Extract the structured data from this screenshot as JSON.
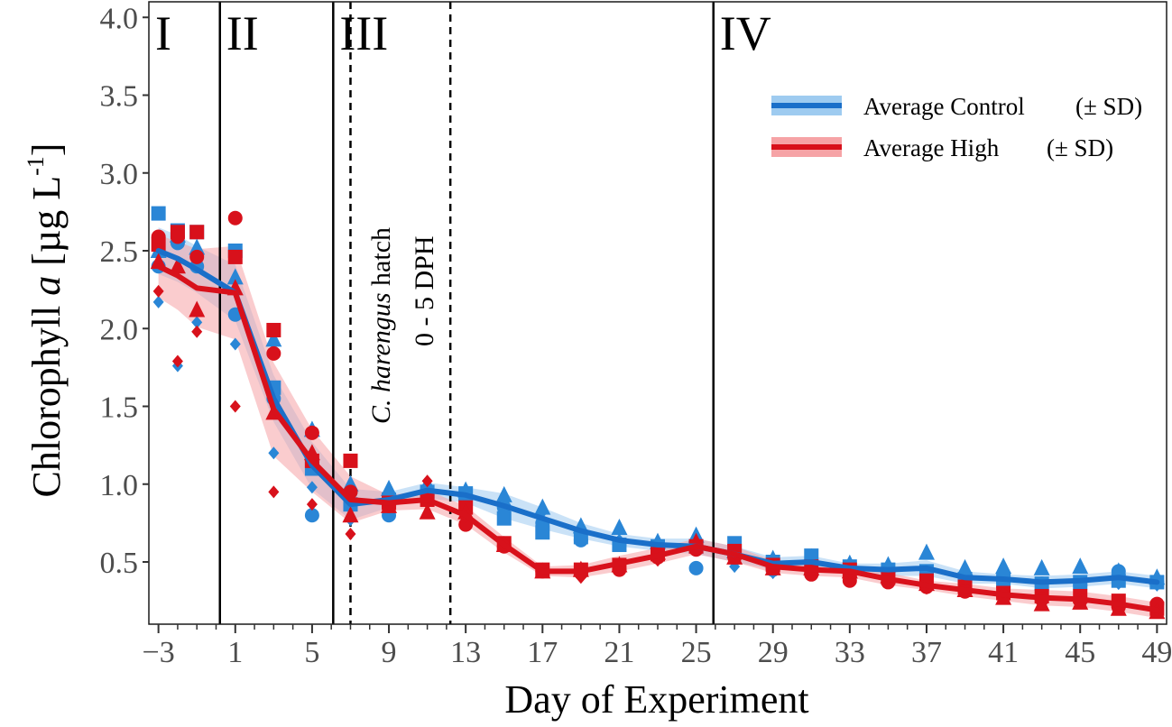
{
  "chart_data": {
    "type": "line",
    "xlabel": "Day of Experiment",
    "ylabel_prefix": "Chlorophyll ",
    "ylabel_italic": "a",
    "ylabel_unit": " [µg L",
    "ylabel_sup": "-1",
    "ylabel_close": "]",
    "xlim": [
      -3.5,
      49.5
    ],
    "ylim": [
      0.1,
      4.1
    ],
    "x_ticks": [
      -3,
      1,
      5,
      9,
      13,
      17,
      21,
      25,
      29,
      33,
      37,
      41,
      45,
      49
    ],
    "x_tick_labels": [
      "−3",
      "1",
      "5",
      "9",
      "13",
      "17",
      "21",
      "25",
      "29",
      "33",
      "37",
      "41",
      "45",
      "49"
    ],
    "y_ticks": [
      0.5,
      1.0,
      1.5,
      2.0,
      2.5,
      3.0,
      3.5,
      4.0
    ],
    "y_tick_labels": [
      "0.5",
      "1.0",
      "1.5",
      "2.0",
      "2.5",
      "3.0",
      "3.5",
      "4.0"
    ],
    "grid": false,
    "legend_position": "top-right",
    "colors": {
      "control": "#1a6fc9",
      "control_band": "#9ecbf0",
      "high": "#d8111b",
      "high_band": "#f6a3a6",
      "point_control": "#2a86d6"
    },
    "phases": [
      {
        "label": "I",
        "x_start": -3.5,
        "x_end": 0.2
      },
      {
        "label": "II",
        "x_start": 0.2,
        "x_end": 6.1
      },
      {
        "label": "III",
        "x_start": 6.1,
        "x_end": 25.9
      },
      {
        "label": "IV",
        "x_start": 25.9,
        "x_end": 49.5
      }
    ],
    "phase_boundaries": [
      0.2,
      6.1,
      25.9
    ],
    "hatch_window": [
      7.0,
      12.2
    ],
    "annotation": {
      "line1_italic": "C. harengus",
      "line1_rest": " hatch",
      "line2": "0 - 5 DPH"
    },
    "series": [
      {
        "name": "Average Control",
        "suffix": "(± SD)",
        "key": "control",
        "x": [
          -3,
          -2,
          -1,
          1,
          3,
          5,
          7,
          9,
          11,
          13,
          15,
          17,
          19,
          21,
          23,
          25,
          27,
          29,
          31,
          33,
          35,
          37,
          39,
          41,
          43,
          45,
          47,
          49
        ],
        "values": [
          2.5,
          2.45,
          2.38,
          2.23,
          1.55,
          1.12,
          0.87,
          0.9,
          0.96,
          0.93,
          0.86,
          0.78,
          0.7,
          0.64,
          0.61,
          0.6,
          0.55,
          0.49,
          0.5,
          0.46,
          0.45,
          0.46,
          0.4,
          0.39,
          0.37,
          0.38,
          0.4,
          0.37
        ],
        "sd": [
          0.15,
          0.15,
          0.15,
          0.18,
          0.15,
          0.15,
          0.1,
          0.05,
          0.05,
          0.05,
          0.08,
          0.07,
          0.05,
          0.04,
          0.04,
          0.05,
          0.05,
          0.04,
          0.04,
          0.03,
          0.04,
          0.05,
          0.04,
          0.03,
          0.04,
          0.04,
          0.04,
          0.04
        ]
      },
      {
        "name": "Average High",
        "suffix": "(± SD)",
        "key": "high",
        "x": [
          -3,
          -2,
          -1,
          1,
          3,
          5,
          7,
          9,
          11,
          13,
          15,
          17,
          19,
          21,
          23,
          25,
          27,
          29,
          31,
          33,
          35,
          37,
          39,
          41,
          43,
          45,
          47,
          49
        ],
        "values": [
          2.4,
          2.34,
          2.26,
          2.23,
          1.48,
          1.15,
          0.9,
          0.88,
          0.9,
          0.8,
          0.61,
          0.44,
          0.44,
          0.49,
          0.54,
          0.6,
          0.55,
          0.47,
          0.45,
          0.44,
          0.39,
          0.35,
          0.32,
          0.29,
          0.27,
          0.26,
          0.23,
          0.19
        ],
        "sd": [
          0.2,
          0.22,
          0.25,
          0.3,
          0.3,
          0.2,
          0.15,
          0.05,
          0.06,
          0.06,
          0.05,
          0.03,
          0.04,
          0.05,
          0.05,
          0.05,
          0.05,
          0.04,
          0.04,
          0.04,
          0.04,
          0.03,
          0.04,
          0.04,
          0.05,
          0.05,
          0.05,
          0.05
        ]
      }
    ],
    "replicates": [
      {
        "group": "control",
        "shape": "square",
        "x": [
          -3,
          -2,
          -1,
          1,
          3,
          5,
          7,
          9,
          11,
          13,
          15,
          17,
          19,
          21,
          23,
          25,
          27,
          29,
          31,
          33,
          35,
          37,
          39,
          41,
          43,
          45,
          47,
          49
        ],
        "values": [
          2.74,
          2.63,
          2.62,
          2.5,
          1.62,
          1.1,
          0.87,
          0.9,
          0.95,
          0.94,
          0.78,
          0.69,
          0.66,
          0.61,
          0.6,
          0.6,
          0.62,
          0.5,
          0.54,
          0.47,
          0.45,
          0.44,
          0.39,
          0.38,
          0.36,
          0.37,
          0.38,
          0.37
        ]
      },
      {
        "group": "control",
        "shape": "circle",
        "x": [
          -3,
          -2,
          -1,
          1,
          3,
          5,
          7,
          9,
          11,
          13,
          15,
          17,
          19,
          21,
          23,
          25,
          27,
          29,
          31,
          33,
          35,
          37,
          39,
          41,
          43,
          45,
          47,
          49
        ],
        "values": [
          2.4,
          2.55,
          2.4,
          2.09,
          1.55,
          0.8,
          0.95,
          0.8,
          0.96,
          0.9,
          0.85,
          0.75,
          0.64,
          0.61,
          0.57,
          0.46,
          0.55,
          0.45,
          0.5,
          0.46,
          0.44,
          0.43,
          0.38,
          0.37,
          0.36,
          0.35,
          0.44,
          0.37
        ]
      },
      {
        "group": "control",
        "shape": "triangle",
        "x": [
          -3,
          -2,
          -1,
          1,
          3,
          5,
          7,
          9,
          11,
          13,
          15,
          17,
          19,
          21,
          23,
          25,
          27,
          29,
          31,
          33,
          35,
          37,
          39,
          41,
          43,
          45,
          47,
          49
        ],
        "values": [
          2.5,
          2.6,
          2.52,
          2.33,
          1.93,
          1.35,
          1.0,
          0.97,
          1.0,
          0.96,
          0.93,
          0.85,
          0.73,
          0.72,
          0.63,
          0.67,
          0.57,
          0.52,
          0.53,
          0.49,
          0.48,
          0.56,
          0.46,
          0.47,
          0.46,
          0.47,
          0.44,
          0.4
        ]
      },
      {
        "group": "control",
        "shape": "diamond",
        "x": [
          -3,
          -2,
          -1,
          1,
          3,
          5,
          7,
          9,
          11,
          13,
          15,
          17,
          19,
          21,
          23,
          25,
          27,
          29,
          31,
          33,
          35,
          37,
          39,
          41,
          43,
          45,
          47,
          49
        ],
        "values": [
          2.17,
          1.76,
          2.04,
          1.9,
          1.2,
          0.98,
          0.77,
          0.85,
          0.93,
          0.92,
          0.88,
          0.82,
          0.71,
          0.64,
          0.62,
          0.65,
          0.47,
          0.43,
          0.44,
          0.43,
          0.43,
          0.4,
          0.38,
          0.36,
          0.35,
          0.35,
          0.36,
          0.35
        ]
      },
      {
        "group": "high",
        "shape": "square",
        "x": [
          -3,
          -2,
          -1,
          1,
          3,
          5,
          7,
          9,
          11,
          13,
          15,
          17,
          19,
          21,
          23,
          25,
          27,
          29,
          31,
          33,
          35,
          37,
          39,
          41,
          43,
          45,
          47,
          49
        ],
        "values": [
          2.54,
          2.62,
          2.62,
          2.46,
          1.99,
          1.15,
          1.15,
          0.88,
          0.9,
          0.85,
          0.62,
          0.45,
          0.45,
          0.48,
          0.55,
          0.6,
          0.57,
          0.48,
          0.47,
          0.45,
          0.4,
          0.38,
          0.34,
          0.3,
          0.28,
          0.28,
          0.25,
          0.2
        ]
      },
      {
        "group": "high",
        "shape": "circle",
        "x": [
          -3,
          -2,
          -1,
          1,
          3,
          5,
          7,
          9,
          11,
          13,
          15,
          17,
          19,
          21,
          23,
          25,
          27,
          29,
          31,
          33,
          35,
          37,
          39,
          41,
          43,
          45,
          47,
          49
        ],
        "values": [
          2.59,
          2.59,
          2.46,
          2.71,
          1.84,
          1.33,
          0.95,
          0.86,
          0.93,
          0.74,
          0.6,
          0.44,
          0.43,
          0.45,
          0.53,
          0.58,
          0.53,
          0.46,
          0.42,
          0.38,
          0.37,
          0.34,
          0.31,
          0.28,
          0.26,
          0.25,
          0.21,
          0.23
        ]
      },
      {
        "group": "high",
        "shape": "triangle",
        "x": [
          -3,
          -2,
          -1,
          1,
          3,
          5,
          7,
          9,
          11,
          13,
          15,
          17,
          19,
          21,
          23,
          25,
          27,
          29,
          31,
          33,
          35,
          37,
          39,
          41,
          43,
          45,
          47,
          49
        ],
        "values": [
          2.43,
          2.4,
          2.12,
          2.26,
          1.46,
          1.2,
          0.8,
          0.86,
          0.82,
          0.82,
          0.61,
          0.44,
          0.45,
          0.48,
          0.56,
          0.63,
          0.53,
          0.46,
          0.46,
          0.44,
          0.41,
          0.36,
          0.32,
          0.27,
          0.23,
          0.24,
          0.2,
          0.18
        ]
      },
      {
        "group": "high",
        "shape": "diamond",
        "x": [
          -3,
          -2,
          -1,
          1,
          3,
          5,
          7,
          9,
          11,
          13,
          15,
          17,
          19,
          21,
          23,
          25,
          27,
          29,
          31,
          33,
          35,
          37,
          39,
          41,
          43,
          45,
          47,
          49
        ],
        "values": [
          2.24,
          1.79,
          1.98,
          1.5,
          0.95,
          0.87,
          0.68,
          0.87,
          1.02,
          0.79,
          0.62,
          0.45,
          0.4,
          0.47,
          0.51,
          0.61,
          0.55,
          0.47,
          0.44,
          0.43,
          0.37,
          0.33,
          0.31,
          0.3,
          0.27,
          0.25,
          0.22,
          0.19
        ]
      }
    ]
  }
}
